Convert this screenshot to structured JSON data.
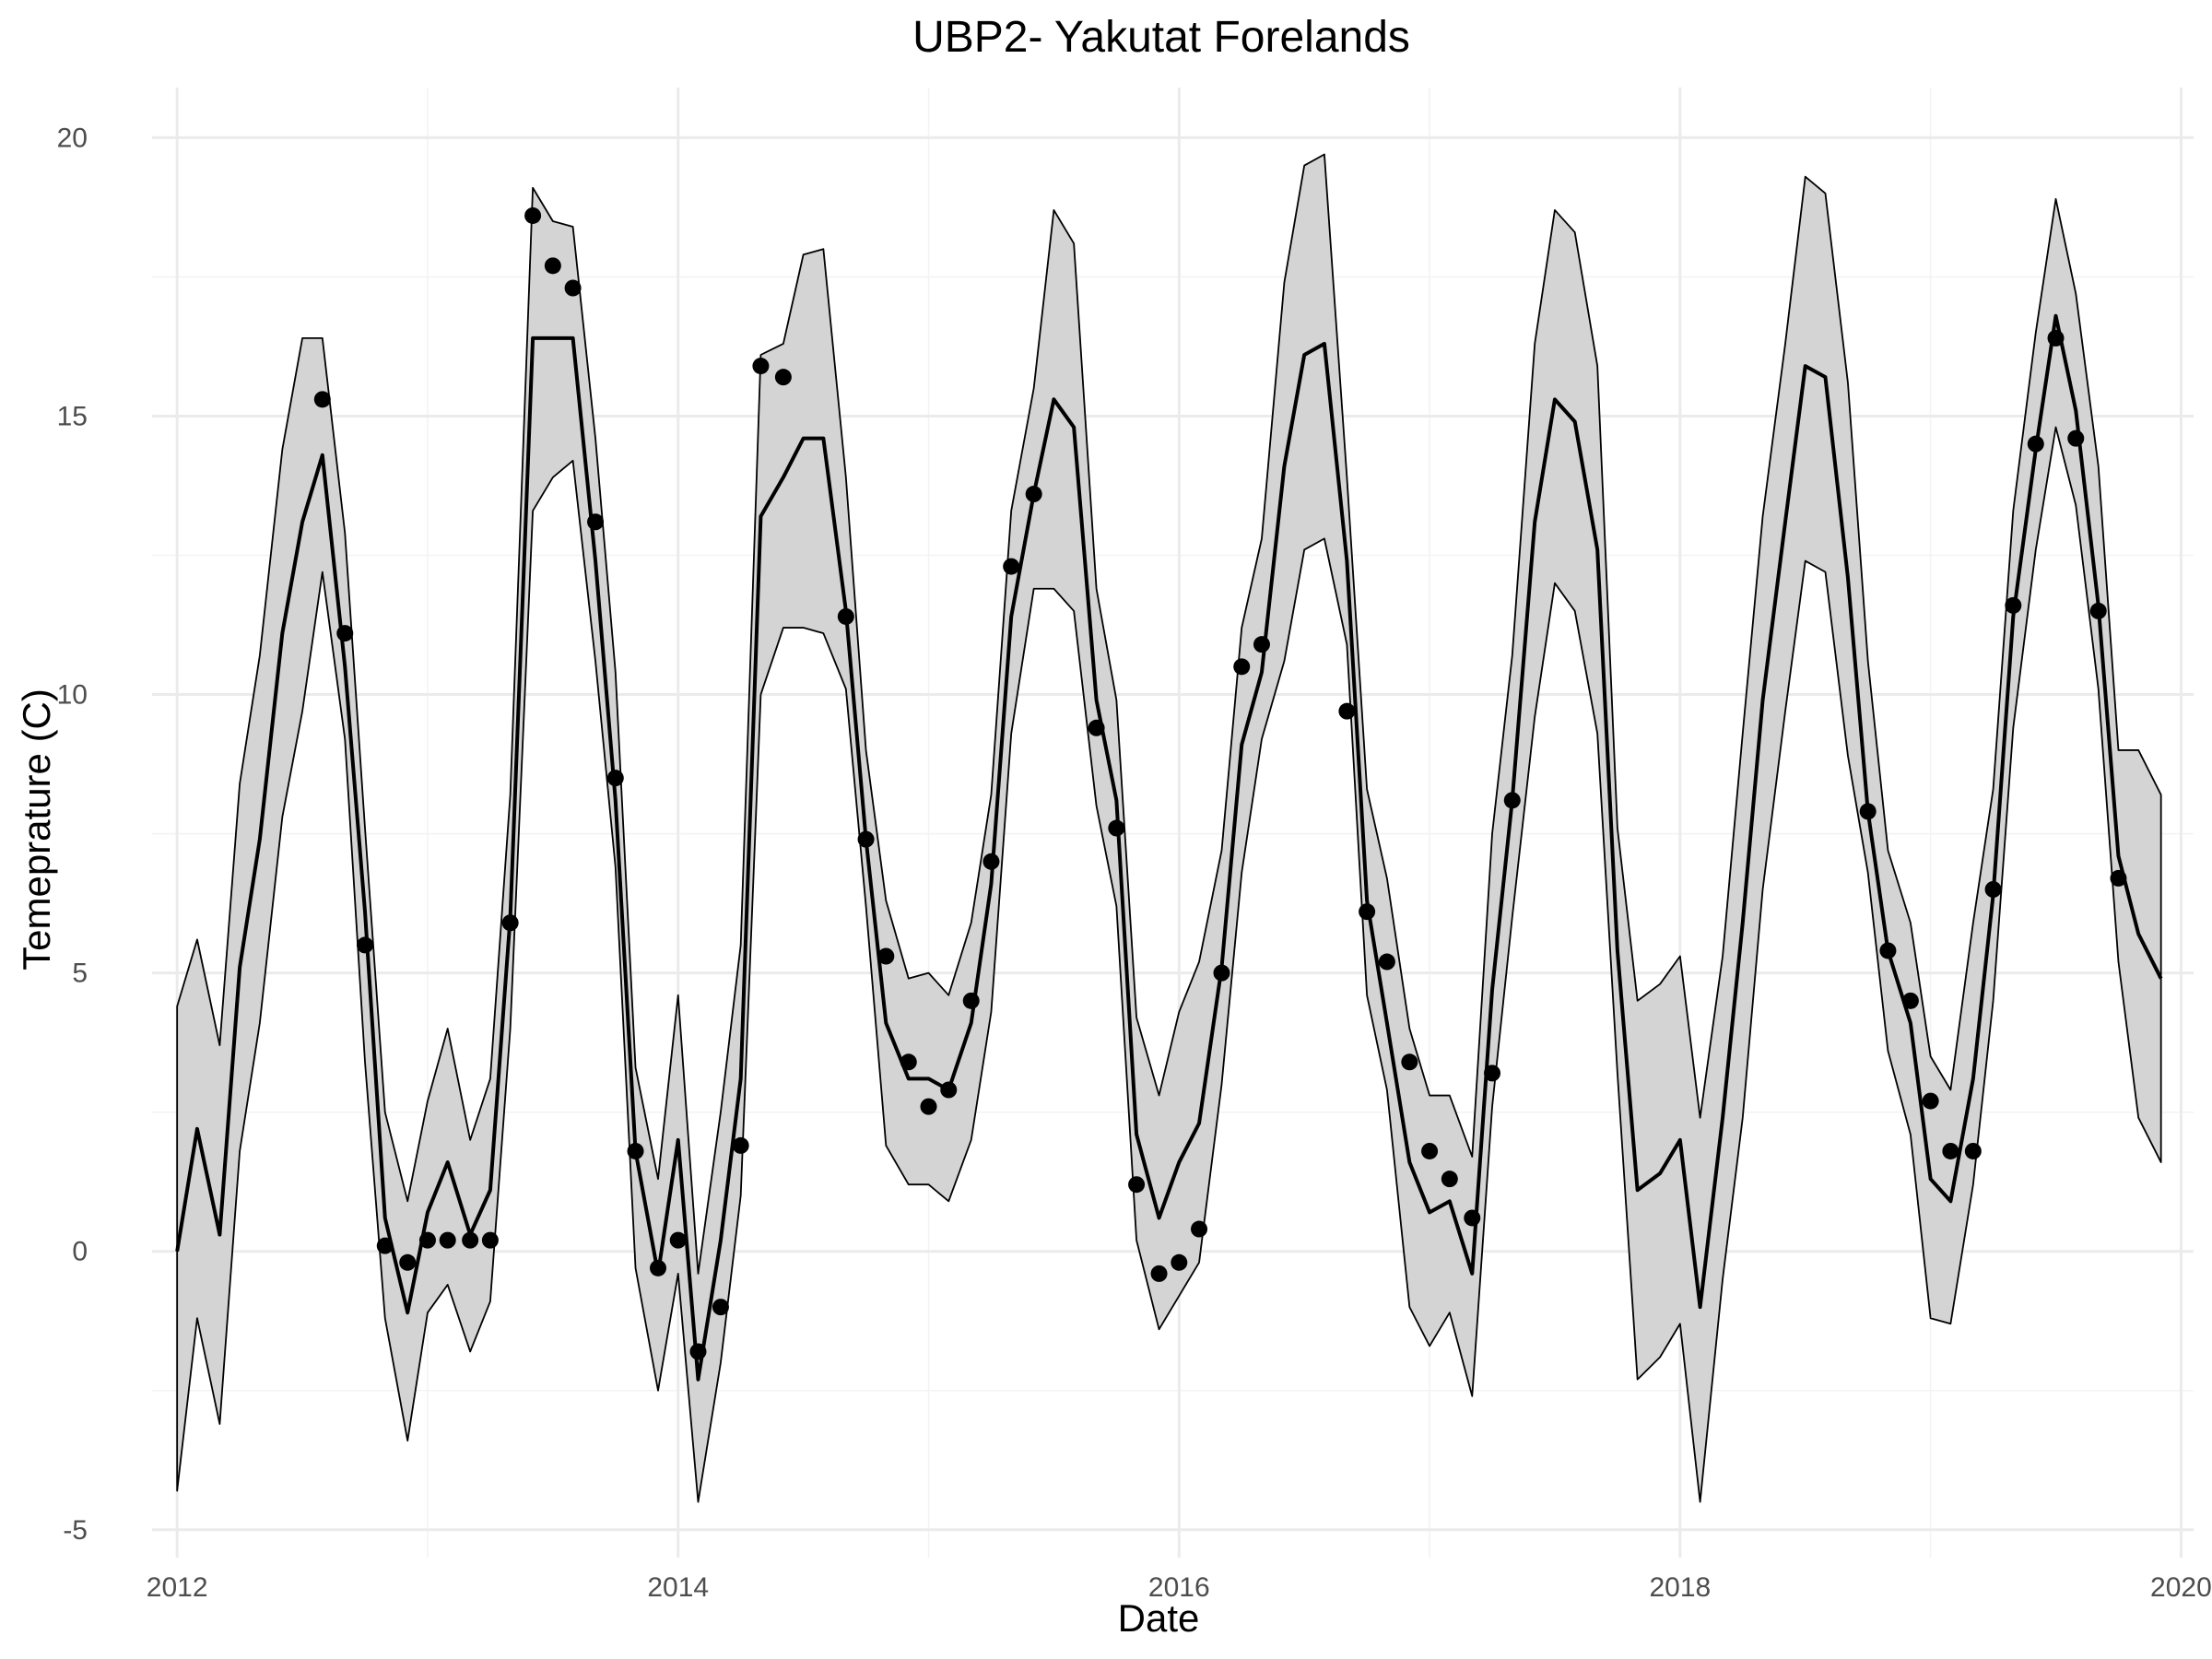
{
  "chart_data": {
    "type": "line",
    "title": "UBP2- Yakutat Forelands",
    "xlabel": "Date",
    "ylabel": "Temeprature (C)",
    "xlim": [
      2011.9,
      2020.05
    ],
    "ylim": [
      -5.5,
      20.9
    ],
    "x_ticks": [
      2012,
      2014,
      2016,
      2018,
      2020
    ],
    "x_tick_labels": [
      "2012",
      "2014",
      "2016",
      "2018",
      "2020"
    ],
    "y_ticks": [
      -5,
      0,
      5,
      10,
      15,
      20
    ],
    "y_tick_labels": [
      "-5",
      "0",
      "5",
      "10",
      "15",
      "20"
    ],
    "grid": true,
    "colors": {
      "band": "#d4d4d4",
      "line": "#000000",
      "points": "#000000",
      "grid": "#ebebeb"
    },
    "series": [
      {
        "kind": "ribbon-with-mean",
        "x": [
          2012.0,
          2012.08,
          2012.17,
          2012.25,
          2012.33,
          2012.42,
          2012.5,
          2012.58,
          2012.67,
          2012.75,
          2012.83,
          2012.92,
          2013.0,
          2013.08,
          2013.17,
          2013.25,
          2013.33,
          2013.42,
          2013.5,
          2013.58,
          2013.67,
          2013.75,
          2013.83,
          2013.92,
          2014.0,
          2014.08,
          2014.17,
          2014.25,
          2014.33,
          2014.42,
          2014.5,
          2014.58,
          2014.67,
          2014.75,
          2014.83,
          2014.92,
          2015.0,
          2015.08,
          2015.17,
          2015.25,
          2015.33,
          2015.42,
          2015.5,
          2015.58,
          2015.67,
          2015.75,
          2015.83,
          2015.92,
          2016.0,
          2016.08,
          2016.17,
          2016.25,
          2016.33,
          2016.42,
          2016.5,
          2016.58,
          2016.67,
          2016.75,
          2016.83,
          2016.92,
          2017.0,
          2017.08,
          2017.17,
          2017.25,
          2017.33,
          2017.42,
          2017.5,
          2017.58,
          2017.67,
          2017.75,
          2017.83,
          2017.92,
          2018.0,
          2018.08,
          2018.17,
          2018.25,
          2018.33,
          2018.42,
          2018.5,
          2018.58,
          2018.67,
          2018.75,
          2018.83,
          2018.92,
          2019.0,
          2019.08,
          2019.17,
          2019.25,
          2019.33,
          2019.42,
          2019.5,
          2019.58,
          2019.67,
          2019.75,
          2019.83,
          2019.92
        ],
        "mean": [
          0.0,
          2.2,
          0.3,
          5.1,
          7.4,
          11.1,
          13.1,
          14.3,
          10.5,
          6.1,
          0.6,
          -1.1,
          0.7,
          1.6,
          0.3,
          1.1,
          6.0,
          16.4,
          16.4,
          16.4,
          12.4,
          8.1,
          1.8,
          -0.4,
          2.0,
          -2.3,
          0.2,
          3.1,
          13.2,
          13.9,
          14.6,
          14.6,
          11.5,
          7.4,
          4.1,
          3.1,
          3.1,
          2.9,
          4.1,
          6.6,
          11.4,
          13.6,
          15.3,
          14.8,
          9.9,
          8.1,
          2.1,
          0.6,
          1.6,
          2.3,
          5.1,
          9.1,
          10.4,
          14.1,
          16.1,
          16.3,
          12.4,
          6.3,
          4.1,
          1.6,
          0.7,
          0.9,
          -0.4,
          4.7,
          8.1,
          13.1,
          15.3,
          14.9,
          12.6,
          5.4,
          1.1,
          1.4,
          2.0,
          -1.0,
          2.4,
          5.9,
          9.9,
          13.1,
          15.9,
          15.7,
          12.1,
          7.9,
          5.4,
          4.1,
          1.3,
          0.9,
          3.1,
          6.4,
          11.4,
          14.4,
          16.8,
          15.1,
          11.6,
          7.1,
          5.7,
          4.9
        ],
        "lower": [
          -4.3,
          -1.2,
          -3.1,
          1.8,
          4.1,
          7.8,
          9.7,
          12.2,
          9.2,
          3.4,
          -1.2,
          -3.4,
          -1.1,
          -0.6,
          -1.8,
          -0.9,
          4.0,
          13.3,
          13.9,
          14.2,
          10.6,
          6.9,
          -0.3,
          -2.5,
          -0.4,
          -4.5,
          -2.0,
          1.0,
          10.0,
          11.2,
          11.2,
          11.1,
          10.1,
          6.2,
          1.9,
          1.2,
          1.2,
          0.9,
          2.0,
          4.3,
          9.3,
          11.9,
          11.9,
          11.5,
          8.0,
          6.2,
          0.2,
          -1.4,
          -0.8,
          -0.2,
          3.0,
          6.8,
          9.2,
          10.6,
          12.6,
          12.8,
          10.9,
          4.6,
          2.9,
          -1.0,
          -1.7,
          -1.1,
          -2.6,
          2.6,
          6.0,
          9.6,
          12.0,
          11.5,
          9.3,
          3.2,
          -2.3,
          -1.9,
          -1.3,
          -4.5,
          -0.5,
          2.4,
          6.5,
          9.7,
          12.4,
          12.2,
          8.9,
          6.8,
          3.6,
          2.1,
          -1.2,
          -1.3,
          1.2,
          4.5,
          9.4,
          12.6,
          14.8,
          13.4,
          10.1,
          5.2,
          2.4,
          1.6
        ],
        "upper": [
          4.4,
          5.6,
          3.7,
          8.4,
          10.7,
          14.4,
          16.4,
          16.4,
          12.9,
          7.6,
          2.5,
          0.9,
          2.7,
          4.0,
          2.0,
          3.1,
          8.2,
          19.1,
          18.5,
          18.4,
          14.6,
          10.4,
          3.3,
          1.3,
          4.6,
          -0.4,
          2.5,
          5.5,
          16.1,
          16.3,
          17.9,
          18.0,
          13.9,
          9.0,
          6.3,
          4.9,
          5.0,
          4.6,
          5.9,
          8.2,
          13.3,
          15.5,
          18.7,
          18.1,
          11.9,
          9.9,
          4.2,
          2.8,
          4.3,
          5.2,
          7.2,
          11.2,
          12.8,
          17.4,
          19.5,
          19.7,
          13.9,
          8.3,
          6.7,
          4.0,
          2.8,
          2.8,
          1.7,
          7.5,
          10.7,
          16.3,
          18.7,
          18.3,
          15.9,
          7.6,
          4.5,
          4.8,
          5.3,
          2.4,
          5.3,
          9.3,
          13.2,
          16.3,
          19.3,
          19.0,
          15.6,
          10.6,
          7.2,
          5.9,
          3.5,
          2.9,
          5.9,
          8.3,
          13.3,
          16.5,
          18.9,
          17.2,
          14.1,
          9.0,
          9.0,
          8.2
        ]
      },
      {
        "kind": "points",
        "x": [
          2012.58,
          2012.67,
          2012.75,
          2012.83,
          2012.92,
          2013.0,
          2013.08,
          2013.17,
          2013.25,
          2013.33,
          2013.42,
          2013.5,
          2013.58,
          2013.67,
          2013.75,
          2013.83,
          2013.92,
          2014.0,
          2014.08,
          2014.17,
          2014.25,
          2014.33,
          2014.42,
          2014.67,
          2014.75,
          2014.83,
          2014.92,
          2015.0,
          2015.08,
          2015.17,
          2015.25,
          2015.33,
          2015.42,
          2015.67,
          2015.75,
          2015.83,
          2015.92,
          2016.0,
          2016.08,
          2016.17,
          2016.25,
          2016.33,
          2016.67,
          2016.75,
          2016.83,
          2016.92,
          2017.0,
          2017.08,
          2017.17,
          2017.25,
          2017.33,
          2018.75,
          2018.83,
          2018.92,
          2019.0,
          2019.08,
          2019.17,
          2019.25,
          2019.33,
          2019.42,
          2019.5,
          2019.58,
          2019.67,
          2019.75
        ],
        "y": [
          15.3,
          11.1,
          5.5,
          0.1,
          -0.2,
          0.2,
          0.2,
          0.2,
          0.2,
          5.9,
          18.6,
          17.7,
          17.3,
          13.1,
          8.5,
          1.8,
          -0.3,
          0.2,
          -1.8,
          -1.0,
          1.9,
          15.9,
          15.7,
          11.4,
          7.4,
          5.3,
          3.4,
          2.6,
          2.9,
          4.5,
          7.0,
          12.3,
          13.6,
          9.4,
          7.6,
          1.2,
          -0.4,
          -0.2,
          0.4,
          5.0,
          10.5,
          10.9,
          9.7,
          6.1,
          5.2,
          3.4,
          1.8,
          1.3,
          0.6,
          3.2,
          8.1,
          7.9,
          5.4,
          4.5,
          2.7,
          1.8,
          1.8,
          6.5,
          11.6,
          14.5,
          16.4,
          14.6,
          11.5,
          6.7
        ]
      }
    ]
  }
}
